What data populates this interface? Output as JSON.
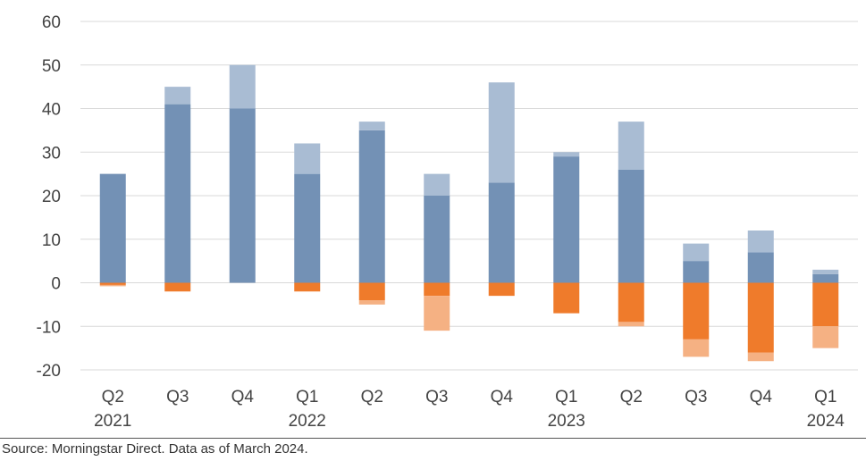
{
  "chart_data": {
    "type": "bar",
    "stacked": true,
    "categories": [
      "Q2",
      "Q3",
      "Q4",
      "Q1",
      "Q2",
      "Q3",
      "Q4",
      "Q1",
      "Q2",
      "Q3",
      "Q4",
      "Q1"
    ],
    "year_labels": [
      "2021",
      "",
      "",
      "2022",
      "",
      "",
      "",
      "2023",
      "",
      "",
      "",
      "2024"
    ],
    "series": [
      {
        "color": "#7391b5",
        "values": [
          25,
          41,
          40,
          25,
          35,
          20,
          23,
          29,
          26,
          5,
          7,
          2
        ]
      },
      {
        "color": "#a9bcd3",
        "values": [
          0,
          4,
          10,
          7,
          2,
          5,
          23,
          1,
          11,
          4,
          5,
          1
        ]
      },
      {
        "color": "#ef7b2b",
        "values": [
          -0.5,
          -2,
          0,
          -2,
          -4,
          -3,
          -3,
          -7,
          -9,
          -13,
          -16,
          -10
        ]
      },
      {
        "color": "#f5b183",
        "values": [
          -0.3,
          0,
          0,
          0,
          -1,
          -8,
          0,
          0,
          -1,
          -4,
          -2,
          -5
        ]
      }
    ],
    "yticks": [
      60,
      50,
      40,
      30,
      20,
      10,
      0,
      -10,
      -20
    ],
    "ylim": [
      -20,
      60
    ],
    "grid": true,
    "title": "",
    "xlabel": "",
    "ylabel": ""
  },
  "source": "Source: Morningstar Direct. Data as of March 2024."
}
